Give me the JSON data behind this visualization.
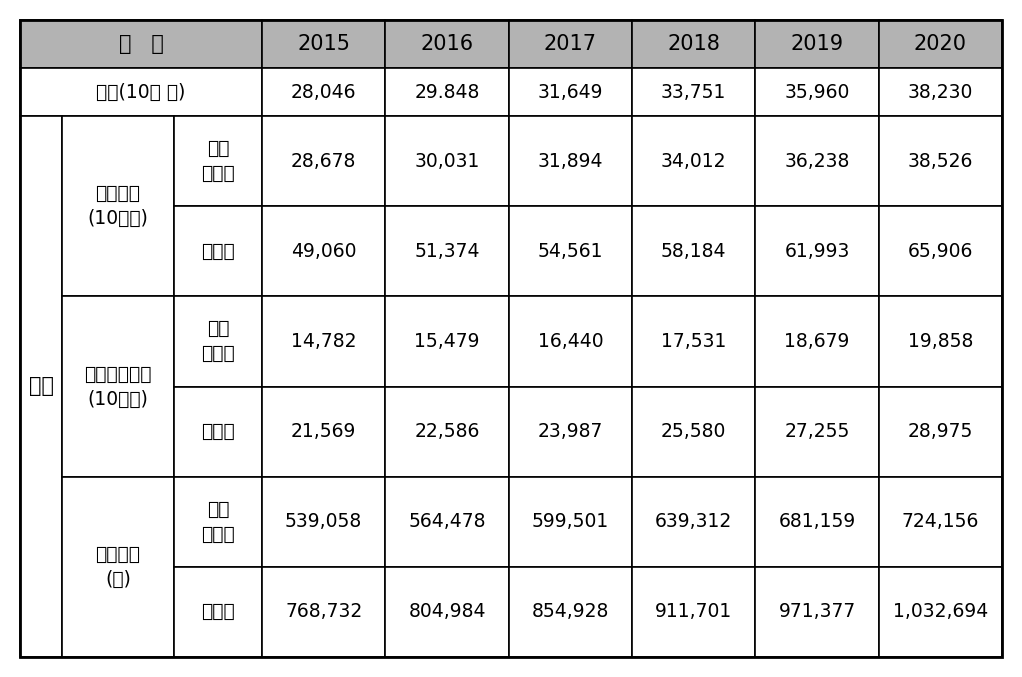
{
  "years": [
    "2015",
    "2016",
    "2017",
    "2018",
    "2019",
    "2020"
  ],
  "input_label": "투입(10억 원)",
  "input_values": [
    "28,046",
    "29.848",
    "31,649",
    "33,751",
    "35,960",
    "38,230"
  ],
  "output_sections": [
    {
      "main_label": "생산유발\n(10억원)",
      "sub_rows": [
        {
          "label": "사회\n서비스",
          "values": [
            "28,678",
            "30,031",
            "31,894",
            "34,012",
            "36,238",
            "38,526"
          ]
        },
        {
          "label": "전산업",
          "values": [
            "49,060",
            "51,374",
            "54,561",
            "58,184",
            "61,993",
            "65,906"
          ]
        }
      ]
    },
    {
      "main_label": "부가가치창출\n(10억원)",
      "sub_rows": [
        {
          "label": "사회\n서비스",
          "values": [
            "14,782",
            "15,479",
            "16,440",
            "17,531",
            "18,679",
            "19,858"
          ]
        },
        {
          "label": "전산업",
          "values": [
            "21,569",
            "22,586",
            "23,987",
            "25,580",
            "27,255",
            "28,975"
          ]
        }
      ]
    },
    {
      "main_label": "취업유발\n(명)",
      "sub_rows": [
        {
          "label": "사회\n서비스",
          "values": [
            "539,058",
            "564,478",
            "599,501",
            "639,312",
            "681,159",
            "724,156"
          ]
        },
        {
          "label": "전산업",
          "values": [
            "768,732",
            "804,984",
            "854,928",
            "911,701",
            "971,377",
            "1,032,694"
          ]
        }
      ]
    }
  ],
  "sanchul_label": "산출",
  "gubun_label": "구   분",
  "header_bg": "#b3b3b3",
  "cell_bg": "#ffffff",
  "border_color": "#000000",
  "text_color": "#000000",
  "font_size": 13.5,
  "header_font_size": 15,
  "fig_width": 10.22,
  "fig_height": 6.77,
  "dpi": 100
}
